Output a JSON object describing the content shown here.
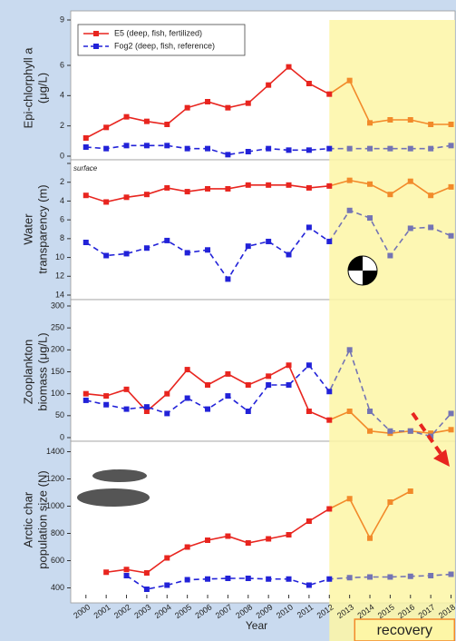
{
  "chart_data": [
    {
      "type": "line",
      "ylabel": [
        "Epi-chlorphyll a",
        "(μg/L)"
      ],
      "x": [
        2000,
        2001,
        2002,
        2003,
        2004,
        2005,
        2006,
        2007,
        2008,
        2009,
        2010,
        2011,
        2012,
        2013,
        2014,
        2015,
        2016,
        2017,
        2018
      ],
      "xlim": [
        1999.25,
        2018.2
      ],
      "ylim": [
        0,
        9
      ],
      "yticks": [
        0,
        2,
        4,
        6,
        9
      ],
      "legend": "upper left",
      "series": [
        {
          "name": "E5 (deep, fish, fertilized)",
          "color": "#e8251f",
          "recovery_color": "#f28a2a",
          "dash": false,
          "values": [
            1.2,
            1.9,
            2.6,
            2.3,
            2.1,
            3.2,
            3.6,
            3.2,
            3.5,
            4.7,
            5.9,
            4.8,
            4.1,
            5.0,
            2.2,
            2.4,
            2.4,
            2.1,
            2.1
          ]
        },
        {
          "name": "Fog2 (deep, fish, reference)",
          "color": "#2222d8",
          "recovery_color": "#7474b4",
          "dash": true,
          "values": [
            0.6,
            0.5,
            0.7,
            0.7,
            0.7,
            0.5,
            0.5,
            0.1,
            0.3,
            0.5,
            0.4,
            0.4,
            0.5,
            0.5,
            0.5,
            0.5,
            0.5,
            0.5,
            0.7
          ]
        }
      ]
    },
    {
      "type": "line",
      "ylabel": [
        "Water",
        "transparency (m)"
      ],
      "invert_y": true,
      "x": [
        2000,
        2001,
        2002,
        2003,
        2004,
        2005,
        2006,
        2007,
        2008,
        2009,
        2010,
        2011,
        2012,
        2013,
        2014,
        2015,
        2016,
        2017,
        2018
      ],
      "xlim": [
        1999.25,
        2018.2
      ],
      "ylim": [
        0,
        14
      ],
      "yticks": [
        {
          "value": 0,
          "label": "surface"
        },
        2,
        4,
        6,
        8,
        10,
        12,
        14
      ],
      "series": [
        {
          "color": "#e8251f",
          "recovery_color": "#f28a2a",
          "dash": false,
          "values": [
            3.4,
            4.1,
            3.6,
            3.3,
            2.6,
            3.0,
            2.7,
            2.7,
            2.3,
            2.3,
            2.3,
            2.6,
            2.4,
            1.8,
            2.2,
            3.3,
            1.9,
            3.4,
            2.5
          ]
        },
        {
          "color": "#2222d8",
          "recovery_color": "#7474b4",
          "dash": true,
          "values": [
            8.4,
            9.8,
            9.6,
            9.0,
            8.2,
            9.5,
            9.2,
            12.3,
            8.8,
            8.3,
            9.7,
            6.8,
            8.3,
            5.0,
            5.8,
            9.8,
            6.9,
            6.8,
            7.7
          ]
        }
      ]
    },
    {
      "type": "line",
      "ylabel": [
        "Zooplankton",
        "biomass (μg/L)"
      ],
      "x": [
        2000,
        2001,
        2002,
        2003,
        2004,
        2005,
        2006,
        2007,
        2008,
        2009,
        2010,
        2011,
        2012,
        2013,
        2014,
        2015,
        2016,
        2017,
        2018
      ],
      "xlim": [
        1999.25,
        2018.2
      ],
      "ylim": [
        0,
        300
      ],
      "yticks": [
        0,
        50,
        100,
        150,
        200,
        250,
        300
      ],
      "series": [
        {
          "color": "#e8251f",
          "recovery_color": "#f28a2a",
          "dash": false,
          "values": [
            100,
            95,
            110,
            60,
            100,
            155,
            120,
            145,
            120,
            140,
            165,
            60,
            40,
            60,
            15,
            10,
            15,
            10,
            18
          ]
        },
        {
          "color": "#2222d8",
          "recovery_color": "#7474b4",
          "dash": true,
          "values": [
            85,
            75,
            65,
            70,
            55,
            90,
            65,
            95,
            60,
            120,
            120,
            165,
            105,
            200,
            60,
            15,
            15,
            3,
            55
          ]
        }
      ]
    },
    {
      "type": "line",
      "ylabel": [
        "Arctic char",
        "population size (N)"
      ],
      "xlabel": "Year",
      "x": [
        2000,
        2001,
        2002,
        2003,
        2004,
        2005,
        2006,
        2007,
        2008,
        2009,
        2010,
        2011,
        2012,
        2013,
        2014,
        2015,
        2016,
        2017,
        2018
      ],
      "xlim": [
        1999.25,
        2018.2
      ],
      "ylim": [
        350,
        1450
      ],
      "yticks": [
        400,
        600,
        800,
        1000,
        1200,
        1400
      ],
      "recovery": {
        "label": "recovery",
        "start": 2012,
        "color": "#fdf6a6"
      },
      "series": [
        {
          "color": "#e8251f",
          "recovery_color": "#f28a2a",
          "dash": false,
          "values": [
            null,
            515,
            535,
            510,
            620,
            700,
            750,
            780,
            730,
            760,
            790,
            890,
            980,
            1055,
            765,
            1030,
            1110,
            null,
            null
          ]
        },
        {
          "color": "#2222d8",
          "recovery_color": "#7474b4",
          "dash": true,
          "values": [
            null,
            null,
            490,
            390,
            420,
            460,
            465,
            470,
            470,
            465,
            465,
            420,
            465,
            475,
            480,
            480,
            485,
            490,
            500
          ]
        }
      ]
    }
  ]
}
